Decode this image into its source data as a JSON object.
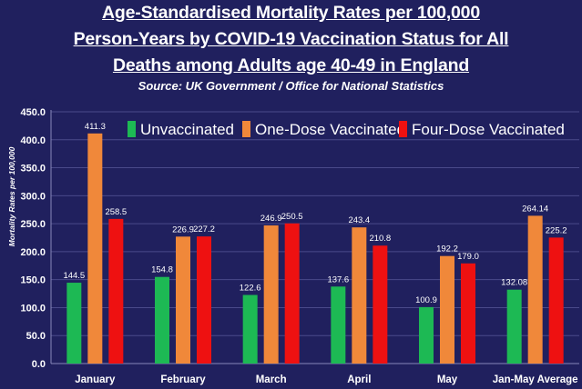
{
  "chart_data": {
    "type": "bar",
    "title_lines": [
      "Age-Standardised Mortality Rates per 100,000",
      "Person-Years by COVID-19 Vaccination Status for All",
      "Deaths among Adults age 40-49 in England"
    ],
    "subtitle": "Source: UK Government / Office for National Statistics",
    "ylabel": "Mortality Rates per 100,000",
    "xlabel": "",
    "ylim": [
      0,
      450
    ],
    "yticks": [
      "0.0",
      "50.0",
      "100.0",
      "150.0",
      "200.0",
      "250.0",
      "300.0",
      "350.0",
      "400.0",
      "450.0"
    ],
    "grid": true,
    "legend_position": "top",
    "categories": [
      "January",
      "February",
      "March",
      "April",
      "May",
      "Jan-May Average"
    ],
    "series": [
      {
        "name": "Unvaccinated",
        "color": "#1db954",
        "values": [
          144.5,
          154.8,
          122.6,
          137.6,
          100.9,
          132.08
        ],
        "labels": [
          "144.5",
          "154.8",
          "122.6",
          "137.6",
          "100.9",
          "132.08"
        ]
      },
      {
        "name": "One-Dose Vaccinated",
        "color": "#f0883a",
        "values": [
          411.3,
          226.9,
          246.9,
          243.4,
          192.2,
          264.14
        ],
        "labels": [
          "411.3",
          "226.9",
          "246.9",
          "243.4",
          "192.2",
          "264.14"
        ]
      },
      {
        "name": "Four-Dose Vaccinated",
        "color": "#ee1111",
        "values": [
          258.5,
          227.2,
          250.5,
          210.8,
          179.0,
          225.2
        ],
        "labels": [
          "258.5",
          "227.2",
          "250.5",
          "210.8",
          "179.0",
          "225.2"
        ]
      }
    ]
  }
}
